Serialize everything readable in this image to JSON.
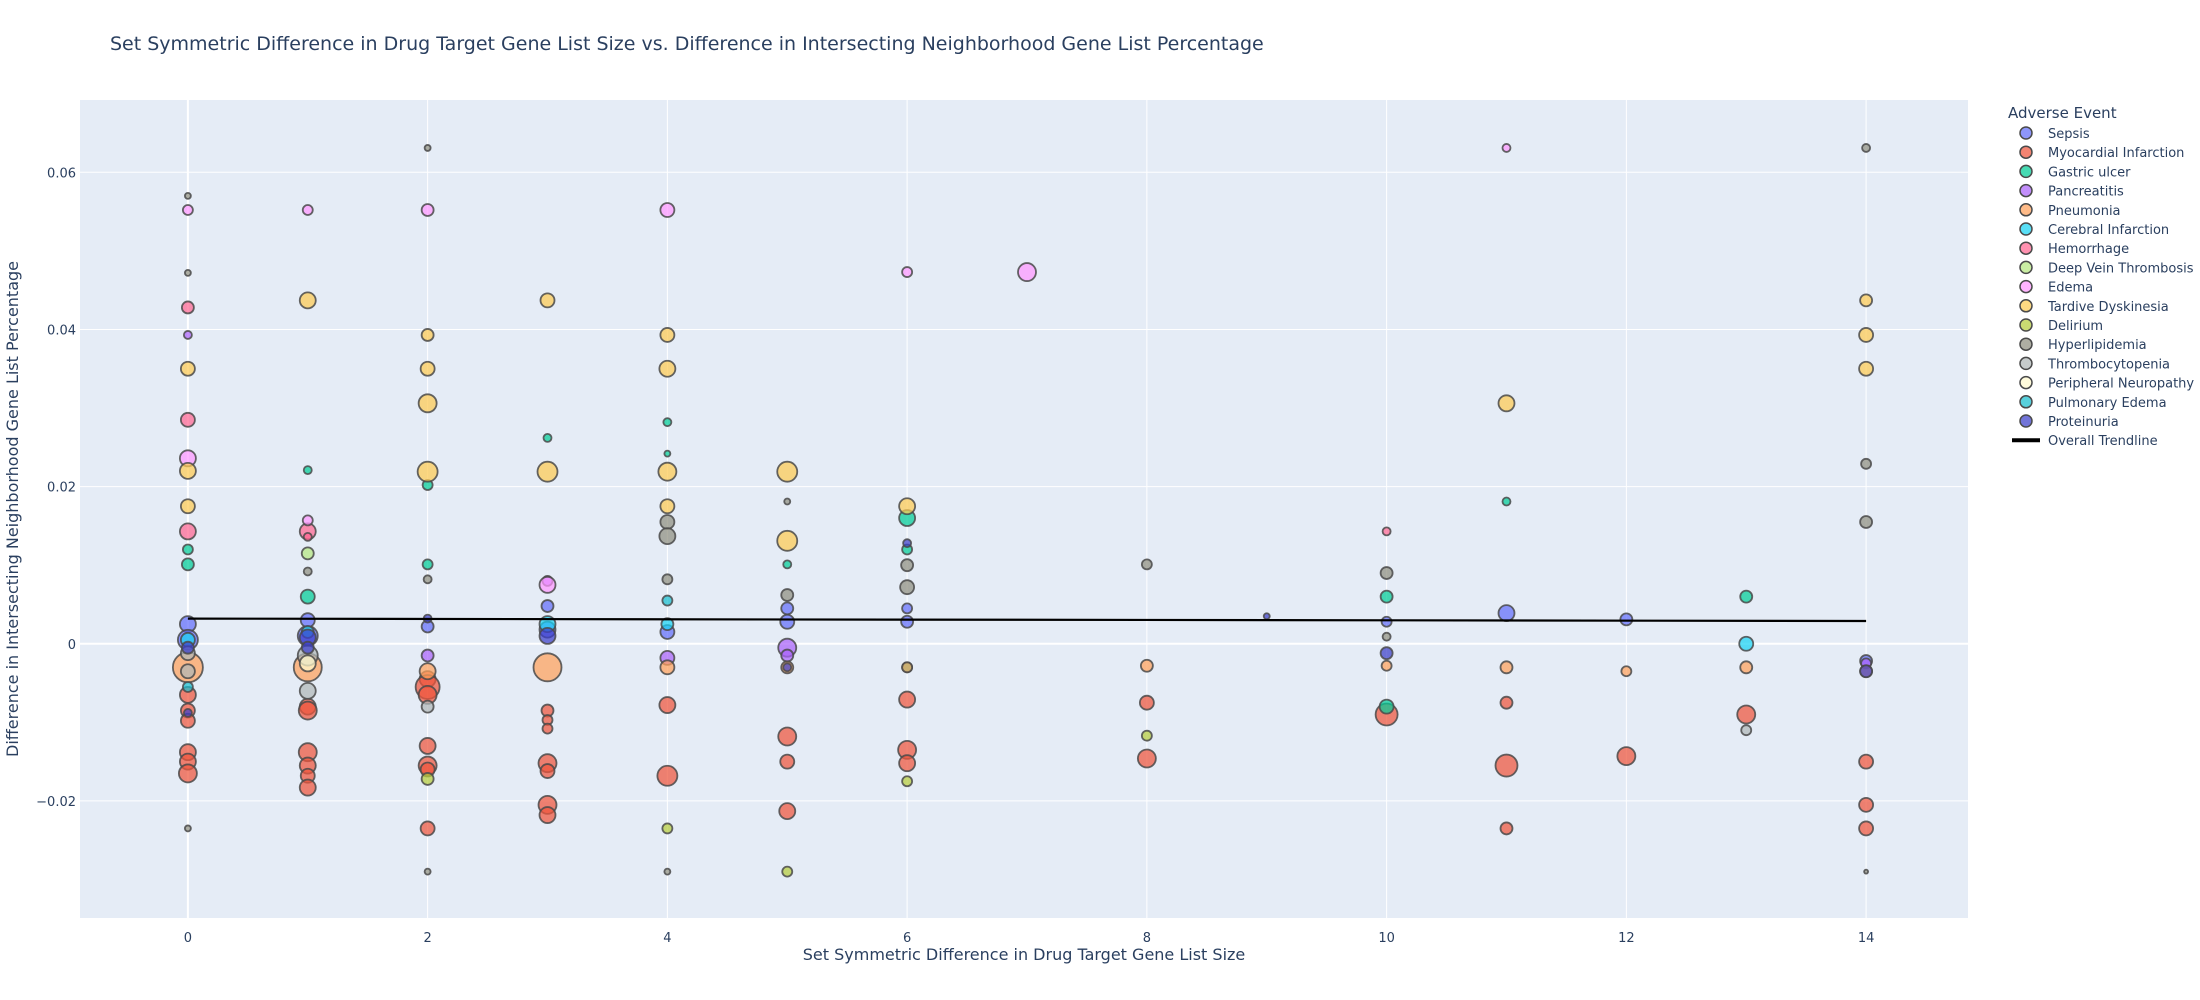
{
  "chart_data": {
    "type": "scatter",
    "title": "Set Symmetric Difference in Drug Target Gene List Size vs. Difference in Intersecting Neighborhood Gene List Percentage",
    "xlabel": "Set Symmetric Difference in Drug Target Gene List Size",
    "ylabel": "Difference in Intersecting Neighborhood Gene List Percentage",
    "xlim": [
      -0.9,
      14.85
    ],
    "ylim": [
      -0.0349,
      0.0692
    ],
    "x_ticks": [
      0,
      2,
      4,
      6,
      8,
      10,
      12,
      14
    ],
    "y_ticks": [
      -0.02,
      0,
      0.02,
      0.04,
      0.06
    ],
    "y_tick_labels": [
      "−0.02",
      "0",
      "0.02",
      "0.04",
      "0.06"
    ],
    "grid": true,
    "background": "#e5ecf6",
    "legend": {
      "title": "Adverse Event",
      "placement": "right",
      "trendline_label": "Overall Trendline"
    },
    "trendline": {
      "x": [
        0,
        14
      ],
      "y": [
        0.0032,
        0.0029
      ],
      "color": "#000000"
    },
    "series": [
      {
        "name": "Sepsis",
        "color": "#636efa",
        "points": [
          [
            0,
            0.0025,
            8
          ],
          [
            0,
            0.0005,
            10
          ],
          [
            1,
            0.001,
            10
          ],
          [
            1,
            0.003,
            7
          ],
          [
            2,
            0.0022,
            6
          ],
          [
            3,
            0.0048,
            6
          ],
          [
            3,
            0.0018,
            8
          ],
          [
            4,
            0.0015,
            7
          ],
          [
            5,
            0.0045,
            6
          ],
          [
            5,
            0.0028,
            7
          ],
          [
            6,
            0.0045,
            5
          ],
          [
            6,
            0.0028,
            6
          ],
          [
            10,
            0.0028,
            5
          ],
          [
            11,
            0.0039,
            8
          ],
          [
            12,
            0.0031,
            6
          ],
          [
            14,
            -0.0022,
            6
          ]
        ]
      },
      {
        "name": "Myocardial Infarction",
        "color": "#ef553b",
        "points": [
          [
            0,
            -0.0065,
            8
          ],
          [
            0,
            -0.0085,
            7
          ],
          [
            0,
            -0.0098,
            7
          ],
          [
            0,
            -0.0138,
            8
          ],
          [
            0,
            -0.015,
            8
          ],
          [
            0,
            -0.0165,
            9
          ],
          [
            1,
            -0.008,
            8
          ],
          [
            1,
            -0.0085,
            9
          ],
          [
            1,
            -0.0138,
            9
          ],
          [
            1,
            -0.0155,
            8
          ],
          [
            1,
            -0.0168,
            7
          ],
          [
            1,
            -0.0183,
            8
          ],
          [
            2,
            -0.0045,
            8
          ],
          [
            2,
            -0.0055,
            12
          ],
          [
            2,
            -0.0065,
            9
          ],
          [
            2,
            -0.013,
            8
          ],
          [
            2,
            -0.0155,
            9
          ],
          [
            2,
            -0.016,
            7
          ],
          [
            2,
            -0.0235,
            7
          ],
          [
            3,
            -0.0085,
            6
          ],
          [
            3,
            -0.0097,
            5
          ],
          [
            3,
            -0.0108,
            5
          ],
          [
            3,
            -0.0152,
            9
          ],
          [
            3,
            -0.0162,
            7
          ],
          [
            3,
            -0.0205,
            9
          ],
          [
            3,
            -0.0218,
            8
          ],
          [
            4,
            -0.0078,
            8
          ],
          [
            4,
            -0.0168,
            10
          ],
          [
            5,
            -0.0118,
            9
          ],
          [
            5,
            -0.015,
            7
          ],
          [
            5,
            -0.0213,
            8
          ],
          [
            6,
            -0.0071,
            8
          ],
          [
            6,
            -0.0135,
            9
          ],
          [
            6,
            -0.0152,
            8
          ],
          [
            8,
            -0.0075,
            7
          ],
          [
            8,
            -0.0146,
            9
          ],
          [
            10,
            -0.009,
            11
          ],
          [
            11,
            -0.0075,
            6
          ],
          [
            11,
            -0.0155,
            11
          ],
          [
            11,
            -0.0235,
            6
          ],
          [
            12,
            -0.0143,
            9
          ],
          [
            13,
            -0.009,
            9
          ],
          [
            14,
            -0.015,
            7
          ],
          [
            14,
            -0.0205,
            7
          ],
          [
            14,
            -0.0235,
            7
          ]
        ]
      },
      {
        "name": "Gastric ulcer",
        "color": "#00cc96",
        "points": [
          [
            0,
            0.012,
            5
          ],
          [
            0,
            0.0101,
            6
          ],
          [
            1,
            0.0221,
            4
          ],
          [
            1,
            0.006,
            7
          ],
          [
            2,
            0.0202,
            5
          ],
          [
            2,
            0.0101,
            5
          ],
          [
            3,
            0.0262,
            4
          ],
          [
            4,
            0.0282,
            4
          ],
          [
            4,
            0.0242,
            3
          ],
          [
            5,
            0.0101,
            4
          ],
          [
            6,
            0.016,
            8
          ],
          [
            6,
            0.012,
            5
          ],
          [
            6,
            -0.003,
            5
          ],
          [
            10,
            0.006,
            6
          ],
          [
            10,
            -0.008,
            7
          ],
          [
            11,
            0.0181,
            4
          ],
          [
            13,
            0.006,
            6
          ]
        ]
      },
      {
        "name": "Pancreatitis",
        "color": "#ab63fa",
        "points": [
          [
            0,
            0.0393,
            4
          ],
          [
            2,
            -0.0015,
            6
          ],
          [
            3,
            0.008,
            5
          ],
          [
            4,
            -0.0018,
            7
          ],
          [
            5,
            -0.0005,
            9
          ],
          [
            5,
            -0.0015,
            6
          ],
          [
            14,
            -0.0025,
            5
          ]
        ]
      },
      {
        "name": "Pneumonia",
        "color": "#ffa15a",
        "points": [
          [
            0,
            -0.003,
            15
          ],
          [
            1,
            -0.003,
            14
          ],
          [
            2,
            -0.0035,
            8
          ],
          [
            3,
            -0.003,
            14
          ],
          [
            4,
            -0.003,
            7
          ],
          [
            5,
            -0.003,
            6
          ],
          [
            6,
            -0.003,
            5
          ],
          [
            8,
            -0.0028,
            6
          ],
          [
            10,
            -0.0028,
            5
          ],
          [
            11,
            -0.003,
            6
          ],
          [
            12,
            -0.0035,
            5
          ],
          [
            13,
            -0.003,
            6
          ],
          [
            14,
            -0.0035,
            6
          ]
        ]
      },
      {
        "name": "Cerebral Infarction",
        "color": "#19d3f3",
        "points": [
          [
            0,
            0.0005,
            7
          ],
          [
            1,
            0.0015,
            6
          ],
          [
            3,
            0.0025,
            8
          ],
          [
            4,
            0.0025,
            6
          ],
          [
            13,
            0,
            7
          ]
        ]
      },
      {
        "name": "Hemorrhage",
        "color": "#ff6692",
        "points": [
          [
            0,
            0.0428,
            6
          ],
          [
            0,
            0.0285,
            7
          ],
          [
            0,
            0.0143,
            8
          ],
          [
            1,
            0.0143,
            8
          ],
          [
            1,
            0.0136,
            4
          ],
          [
            10,
            0.0143,
            4
          ]
        ]
      },
      {
        "name": "Deep Vein Thrombosis",
        "color": "#b6e880",
        "points": [
          [
            1,
            0.0115,
            6
          ]
        ]
      },
      {
        "name": "Edema",
        "color": "#ff97ff",
        "points": [
          [
            0,
            0.0552,
            5
          ],
          [
            0,
            0.0236,
            8
          ],
          [
            1,
            0.0552,
            5
          ],
          [
            1,
            0.0157,
            5
          ],
          [
            2,
            0.0552,
            6
          ],
          [
            3,
            0.0075,
            8
          ],
          [
            4,
            0.0552,
            7
          ],
          [
            6,
            0.0473,
            5
          ],
          [
            7,
            0.0473,
            9
          ],
          [
            11,
            0.0631,
            4
          ]
        ]
      },
      {
        "name": "Tardive Dyskinesia",
        "color": "#fecb52",
        "points": [
          [
            0,
            0.035,
            7
          ],
          [
            0,
            0.022,
            8
          ],
          [
            0,
            0.0175,
            7
          ],
          [
            1,
            0.0437,
            8
          ],
          [
            2,
            0.0393,
            6
          ],
          [
            2,
            0.035,
            7
          ],
          [
            2,
            0.0306,
            9
          ],
          [
            2,
            0.0219,
            10
          ],
          [
            3,
            0.0437,
            7
          ],
          [
            3,
            0.0219,
            10
          ],
          [
            4,
            0.0393,
            7
          ],
          [
            4,
            0.035,
            8
          ],
          [
            4,
            0.0219,
            9
          ],
          [
            4,
            0.0175,
            7
          ],
          [
            5,
            0.0219,
            10
          ],
          [
            5,
            0.0131,
            10
          ],
          [
            6,
            0.0175,
            8
          ],
          [
            11,
            0.0306,
            8
          ],
          [
            14,
            0.0437,
            6
          ],
          [
            14,
            0.0393,
            7
          ],
          [
            14,
            0.035,
            7
          ]
        ]
      },
      {
        "name": "Delirium",
        "color": "#b6cc3c",
        "points": [
          [
            2,
            -0.0172,
            6
          ],
          [
            4,
            -0.0235,
            5
          ],
          [
            5,
            -0.029,
            5
          ],
          [
            6,
            -0.0175,
            5
          ],
          [
            8,
            -0.0117,
            5
          ]
        ]
      },
      {
        "name": "Hyperlipidemia",
        "color": "#8f8f7f",
        "points": [
          [
            0,
            0.057,
            3
          ],
          [
            0,
            0.0472,
            3
          ],
          [
            0,
            -0.0235,
            3
          ],
          [
            1,
            0.0092,
            4
          ],
          [
            2,
            0.0631,
            3
          ],
          [
            2,
            0.0082,
            4
          ],
          [
            2,
            -0.029,
            3
          ],
          [
            4,
            0.0155,
            7
          ],
          [
            4,
            0.0137,
            8
          ],
          [
            4,
            0.0082,
            5
          ],
          [
            4,
            -0.029,
            3
          ],
          [
            5,
            0.0181,
            3
          ],
          [
            5,
            0.0062,
            6
          ],
          [
            6,
            0.01,
            6
          ],
          [
            6,
            0.0072,
            7
          ],
          [
            8,
            0.0101,
            5
          ],
          [
            10,
            0.009,
            6
          ],
          [
            10,
            0.0009,
            4
          ],
          [
            14,
            0.0631,
            4
          ],
          [
            14,
            0.0229,
            5
          ],
          [
            14,
            0.0155,
            6
          ],
          [
            14,
            -0.029,
            2
          ]
        ]
      },
      {
        "name": "Thrombocytopenia",
        "color": "#b0b7b7",
        "points": [
          [
            0,
            -0.0012,
            7
          ],
          [
            0,
            -0.0035,
            7
          ],
          [
            1,
            -0.0015,
            10
          ],
          [
            1,
            -0.006,
            8
          ],
          [
            2,
            -0.008,
            6
          ],
          [
            13,
            -0.011,
            5
          ]
        ]
      },
      {
        "name": "Peripheral Neuropathy",
        "color": "#fffacd",
        "points": [
          [
            1,
            -0.0025,
            8
          ]
        ]
      },
      {
        "name": "Pulmonary Edema",
        "color": "#17becf",
        "points": [
          [
            0,
            -0.0055,
            5
          ],
          [
            4,
            0.0055,
            5
          ]
        ]
      },
      {
        "name": "Proteinuria",
        "color": "#3b3fc9",
        "points": [
          [
            0,
            -0.0005,
            6
          ],
          [
            0,
            -0.0088,
            4
          ],
          [
            1,
            0.0008,
            8
          ],
          [
            1,
            -0.0005,
            6
          ],
          [
            2,
            0.0032,
            4
          ],
          [
            3,
            0.001,
            8
          ],
          [
            5,
            -0.003,
            4
          ],
          [
            6,
            0.0128,
            4
          ],
          [
            9,
            0.0035,
            3
          ],
          [
            10,
            -0.0012,
            6
          ],
          [
            14,
            -0.0035,
            6
          ]
        ]
      }
    ]
  }
}
